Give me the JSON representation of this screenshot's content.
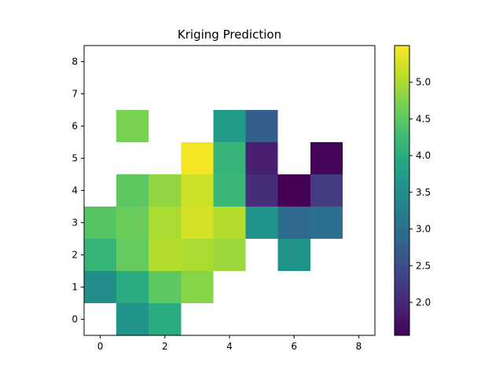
{
  "chart_data": {
    "type": "heatmap",
    "title": "Kriging Prediction",
    "xlabel": "",
    "ylabel": "",
    "x_ticks": [
      0,
      2,
      4,
      6,
      8
    ],
    "y_ticks": [
      0,
      1,
      2,
      3,
      4,
      5,
      6,
      7,
      8
    ],
    "xlim": [
      -0.5,
      8.5
    ],
    "ylim": [
      -0.5,
      8.5
    ],
    "grid": false,
    "colormap": "viridis",
    "color_range": [
      1.55,
      5.5
    ],
    "colorbar_ticks": [
      "2.0",
      "2.5",
      "3.0",
      "3.5",
      "4.0",
      "4.5",
      "5.0"
    ],
    "cells": [
      {
        "x": 1,
        "y": 0,
        "value": 3.6
      },
      {
        "x": 2,
        "y": 0,
        "value": 4.0
      },
      {
        "x": 0,
        "y": 1,
        "value": 3.5
      },
      {
        "x": 1,
        "y": 1,
        "value": 4.0
      },
      {
        "x": 2,
        "y": 1,
        "value": 4.5
      },
      {
        "x": 3,
        "y": 1,
        "value": 4.8
      },
      {
        "x": 0,
        "y": 2,
        "value": 4.15
      },
      {
        "x": 1,
        "y": 2,
        "value": 4.55
      },
      {
        "x": 2,
        "y": 2,
        "value": 5.05
      },
      {
        "x": 3,
        "y": 2,
        "value": 5.0
      },
      {
        "x": 4,
        "y": 2,
        "value": 4.9
      },
      {
        "x": 6,
        "y": 2,
        "value": 3.6
      },
      {
        "x": 0,
        "y": 3,
        "value": 4.45
      },
      {
        "x": 1,
        "y": 3,
        "value": 4.6
      },
      {
        "x": 2,
        "y": 3,
        "value": 5.0
      },
      {
        "x": 3,
        "y": 3,
        "value": 5.25
      },
      {
        "x": 4,
        "y": 3,
        "value": 5.05
      },
      {
        "x": 5,
        "y": 3,
        "value": 3.6
      },
      {
        "x": 6,
        "y": 3,
        "value": 2.9
      },
      {
        "x": 7,
        "y": 3,
        "value": 3.0
      },
      {
        "x": 1,
        "y": 4,
        "value": 4.5
      },
      {
        "x": 2,
        "y": 4,
        "value": 4.85
      },
      {
        "x": 3,
        "y": 4,
        "value": 5.2
      },
      {
        "x": 4,
        "y": 4,
        "value": 4.2
      },
      {
        "x": 5,
        "y": 4,
        "value": 2.05
      },
      {
        "x": 6,
        "y": 4,
        "value": 1.55
      },
      {
        "x": 7,
        "y": 4,
        "value": 2.25
      },
      {
        "x": 3,
        "y": 5,
        "value": 5.45
      },
      {
        "x": 4,
        "y": 5,
        "value": 4.15
      },
      {
        "x": 5,
        "y": 5,
        "value": 1.9
      },
      {
        "x": 7,
        "y": 5,
        "value": 1.6
      },
      {
        "x": 1,
        "y": 6,
        "value": 4.7
      },
      {
        "x": 4,
        "y": 6,
        "value": 3.7
      },
      {
        "x": 5,
        "y": 6,
        "value": 2.75
      }
    ]
  }
}
